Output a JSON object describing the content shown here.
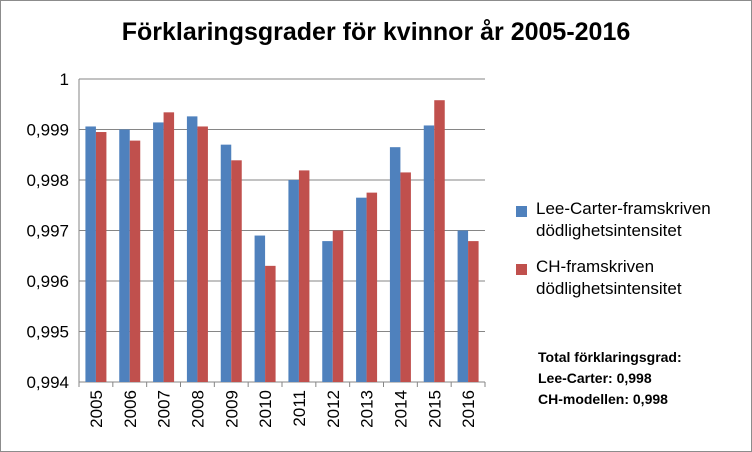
{
  "chart_data": {
    "type": "bar",
    "title": "Förklaringsgrader för kvinnor år 2005-2016",
    "xlabel": "",
    "ylabel": "",
    "categories": [
      "2005",
      "2006",
      "2007",
      "2008",
      "2009",
      "2010",
      "2011",
      "2012",
      "2013",
      "2014",
      "2015",
      "2016"
    ],
    "series": [
      {
        "name": "Lee-Carter-framskriven dödlighetsintensitet",
        "color": "#4f81bd",
        "values": [
          0.99906,
          0.999,
          0.99914,
          0.99926,
          0.9987,
          0.9969,
          0.998,
          0.99679,
          0.99765,
          0.99865,
          0.99908,
          0.997
        ]
      },
      {
        "name": "CH-framskriven dödlighetsintensitet",
        "color": "#c0504d",
        "values": [
          0.99895,
          0.99878,
          0.99934,
          0.99906,
          0.99839,
          0.9963,
          0.99819,
          0.997,
          0.99775,
          0.99815,
          0.99958,
          0.99679
        ]
      }
    ],
    "ylim": [
      0.994,
      1
    ],
    "yticks": [
      "0,994",
      "0,995",
      "0,996",
      "0,997",
      "0,998",
      "0,999",
      "1"
    ],
    "grid": true,
    "legend_position": "right"
  },
  "legend": {
    "items": [
      {
        "label_line1": "Lee-Carter-framskriven",
        "label_line2": "dödlighetsintensitet",
        "color": "#4f81bd"
      },
      {
        "label_line1": "CH-framskriven",
        "label_line2": "dödlighetsintensitet",
        "color": "#c0504d"
      }
    ]
  },
  "summary": {
    "heading": "Total förklaringsgrad:",
    "line1": "Lee-Carter: 0,998",
    "line2": "CH-modellen: 0,998"
  }
}
